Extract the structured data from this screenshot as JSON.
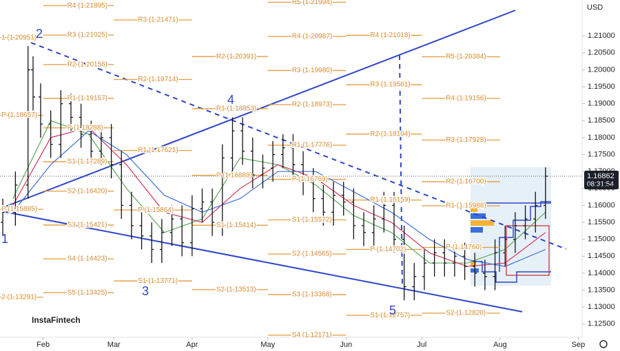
{
  "chart_data": {
    "type": "candlestick",
    "currency": "USD",
    "logo": "InstaFintech",
    "last_price": {
      "value": 1.16862,
      "label": "1.16862"
    },
    "last_time": "08:31:54",
    "color": "#111111",
    "xlim": [
      14.9,
      245.5
    ],
    "xticks": [
      {
        "value": 32,
        "label": "Feb"
      },
      {
        "value": 60,
        "label": "Mar"
      },
      {
        "value": 91,
        "label": "Apr"
      },
      {
        "value": 121,
        "label": "May"
      },
      {
        "value": 152,
        "label": "Jun"
      },
      {
        "value": 182,
        "label": "Jul"
      },
      {
        "value": 213,
        "label": "Aug"
      },
      {
        "value": 244,
        "label": "Sep"
      }
    ],
    "ylim": [
      1.1211,
      1.2206
    ],
    "yticks": [
      {
        "value": 1.125,
        "label": "1.12500"
      },
      {
        "value": 1.13,
        "label": "1.13000"
      },
      {
        "value": 1.135,
        "label": "1.13500"
      },
      {
        "value": 1.14,
        "label": "1.14000"
      },
      {
        "value": 1.145,
        "label": "1.14500"
      },
      {
        "value": 1.15,
        "label": "1.15000"
      },
      {
        "value": 1.155,
        "label": "1.15500"
      },
      {
        "value": 1.16,
        "label": "1.16000"
      },
      {
        "value": 1.165,
        "label": "1.16500"
      },
      {
        "value": 1.17,
        "label": "1.17000"
      },
      {
        "value": 1.175,
        "label": "1.17500"
      },
      {
        "value": 1.18,
        "label": "1.18000"
      },
      {
        "value": 1.185,
        "label": "1.18500"
      },
      {
        "value": 1.19,
        "label": "1.19000"
      },
      {
        "value": 1.195,
        "label": "1.19500"
      },
      {
        "value": 1.2,
        "label": "1.20000"
      },
      {
        "value": 1.205,
        "label": "1.20500"
      },
      {
        "value": 1.21,
        "label": "1.21000"
      }
    ],
    "x": [
      16,
      21,
      26,
      28,
      31,
      35,
      39,
      43,
      47,
      51,
      55,
      59,
      63,
      67,
      71,
      75,
      79,
      83,
      87,
      91,
      95,
      99,
      103,
      107,
      111,
      115,
      119,
      123,
      127,
      131,
      135,
      139,
      143,
      147,
      151,
      155,
      159,
      163,
      167,
      171,
      175,
      179,
      183,
      187,
      191,
      195,
      199,
      203,
      207,
      211,
      215,
      219,
      223,
      227,
      231
    ],
    "open": [
      1.155,
      1.158,
      1.166,
      1.2,
      1.192,
      1.184,
      1.178,
      1.19,
      1.186,
      1.181,
      1.176,
      1.18,
      1.172,
      1.16,
      1.154,
      1.151,
      1.147,
      1.152,
      1.156,
      1.149,
      1.159,
      1.161,
      1.155,
      1.174,
      1.182,
      1.176,
      1.169,
      1.171,
      1.175,
      1.177,
      1.172,
      1.167,
      1.162,
      1.158,
      1.163,
      1.161,
      1.154,
      1.152,
      1.156,
      1.16,
      1.15,
      1.136,
      1.139,
      1.143,
      1.146,
      1.143,
      1.145,
      1.142,
      1.14,
      1.139,
      1.146,
      1.15,
      1.154,
      1.156,
      1.16
    ],
    "high": [
      1.162,
      1.17,
      1.207,
      1.204,
      1.196,
      1.188,
      1.194,
      1.193,
      1.19,
      1.185,
      1.184,
      1.184,
      1.176,
      1.164,
      1.158,
      1.155,
      1.156,
      1.16,
      1.16,
      1.163,
      1.165,
      1.165,
      1.178,
      1.186,
      1.186,
      1.18,
      1.175,
      1.179,
      1.181,
      1.181,
      1.176,
      1.171,
      1.166,
      1.167,
      1.167,
      1.165,
      1.158,
      1.16,
      1.164,
      1.164,
      1.154,
      1.143,
      1.147,
      1.15,
      1.15,
      1.149,
      1.149,
      1.146,
      1.144,
      1.15,
      1.154,
      1.158,
      1.16,
      1.164,
      1.1712
    ],
    "low": [
      1.151,
      1.154,
      1.162,
      1.188,
      1.18,
      1.174,
      1.174,
      1.182,
      1.177,
      1.172,
      1.172,
      1.168,
      1.156,
      1.15,
      1.147,
      1.143,
      1.143,
      1.148,
      1.145,
      1.145,
      1.155,
      1.151,
      1.151,
      1.17,
      1.172,
      1.165,
      1.165,
      1.167,
      1.171,
      1.168,
      1.163,
      1.158,
      1.154,
      1.154,
      1.157,
      1.15,
      1.148,
      1.148,
      1.152,
      1.146,
      1.132,
      1.132,
      1.135,
      1.139,
      1.139,
      1.139,
      1.138,
      1.136,
      1.135,
      1.135,
      1.142,
      1.146,
      1.15,
      1.152,
      1.156
    ],
    "close": [
      1.158,
      1.166,
      1.2,
      1.192,
      1.184,
      1.178,
      1.19,
      1.186,
      1.181,
      1.176,
      1.18,
      1.172,
      1.16,
      1.154,
      1.151,
      1.147,
      1.152,
      1.156,
      1.149,
      1.159,
      1.161,
      1.155,
      1.174,
      1.182,
      1.176,
      1.169,
      1.171,
      1.175,
      1.177,
      1.172,
      1.167,
      1.162,
      1.158,
      1.163,
      1.161,
      1.154,
      1.152,
      1.156,
      1.16,
      1.15,
      1.136,
      1.139,
      1.143,
      1.146,
      1.143,
      1.145,
      1.142,
      1.14,
      1.139,
      1.146,
      1.15,
      1.154,
      1.156,
      1.16,
      1.1686
    ],
    "overlays": [
      {
        "color": "#5aa85a",
        "x": [
          20,
          35,
          50,
          65,
          80,
          95,
          110,
          125,
          140,
          155,
          170,
          185,
          200,
          215,
          231
        ],
        "values": [
          1.162,
          1.185,
          1.181,
          1.165,
          1.152,
          1.156,
          1.174,
          1.172,
          1.166,
          1.157,
          1.152,
          1.143,
          1.143,
          1.147,
          1.158
        ]
      },
      {
        "color": "#d0345a",
        "x": [
          20,
          35,
          50,
          65,
          80,
          95,
          110,
          125,
          140,
          155,
          170,
          185,
          200,
          215,
          231
        ],
        "values": [
          1.16,
          1.18,
          1.183,
          1.172,
          1.158,
          1.155,
          1.165,
          1.172,
          1.168,
          1.16,
          1.155,
          1.146,
          1.142,
          1.143,
          1.152
        ]
      },
      {
        "color": "#3f6fd8",
        "x": [
          20,
          35,
          50,
          65,
          80,
          95,
          110,
          125,
          140,
          155,
          170,
          185,
          200,
          215,
          231
        ],
        "values": [
          1.158,
          1.172,
          1.182,
          1.175,
          1.163,
          1.158,
          1.162,
          1.17,
          1.17,
          1.164,
          1.158,
          1.15,
          1.144,
          1.142,
          1.147
        ]
      }
    ],
    "pivot_color": "#e39a3b",
    "pivots": [
      {
        "start": 1,
        "end": 32,
        "levels": [
          {
            "label": "1 (1.20951)",
            "value": 1.20951
          },
          {
            "label": "P (1.18657)",
            "value": 1.18657
          },
          {
            "label": "P (1.15885)",
            "value": 1.15885
          },
          {
            "label": "2 (1.13291)",
            "value": 1.13291
          }
        ]
      },
      {
        "start": 32,
        "end": 60,
        "levels": [
          {
            "label": "R4 (1.21895)",
            "value": 1.21895
          },
          {
            "label": "R3 (1.21025)",
            "value": 1.21025
          },
          {
            "label": "R2 (1.20156)",
            "value": 1.20156
          },
          {
            "label": "R1 (1.19157)",
            "value": 1.19157
          },
          {
            "label": "P (1.18288)",
            "value": 1.18288
          },
          {
            "label": "S1 (1.17289)",
            "value": 1.17289
          },
          {
            "label": "S2 (1.16420)",
            "value": 1.1642
          },
          {
            "label": "S3 (1.15421)",
            "value": 1.15421
          },
          {
            "label": "S4 (1.14423)",
            "value": 1.14423
          },
          {
            "label": "S5 (1.13425)",
            "value": 1.13425
          }
        ]
      },
      {
        "start": 60,
        "end": 91,
        "levels": [
          {
            "label": "R3 (1.21471)",
            "value": 1.21471
          },
          {
            "label": "R2 (1.19714)",
            "value": 1.19714
          },
          {
            "label": "R1 (1.17621)",
            "value": 1.17621
          },
          {
            "label": "P (1.15864)",
            "value": 1.15864
          },
          {
            "label": "S1 (1.13771)",
            "value": 1.13771
          }
        ]
      },
      {
        "start": 91,
        "end": 121,
        "levels": [
          {
            "label": "R2 (1.20391)",
            "value": 1.20391
          },
          {
            "label": "R1 (1.18853)",
            "value": 1.18853
          },
          {
            "label": "P (1.16889)",
            "value": 1.16889
          },
          {
            "label": "S1 (1.15414)",
            "value": 1.15414
          },
          {
            "label": "S2 (1.13513)",
            "value": 1.13513
          }
        ]
      },
      {
        "start": 121,
        "end": 152,
        "levels": [
          {
            "label": "R5 (1.21994)",
            "value": 1.21994
          },
          {
            "label": "R4 (1.20987)",
            "value": 1.20987
          },
          {
            "label": "R3 (1.19980)",
            "value": 1.1998
          },
          {
            "label": "R2 (1.18973)",
            "value": 1.18973
          },
          {
            "label": "R1 (1.17776)",
            "value": 1.17776
          },
          {
            "label": "P (1.16769)",
            "value": 1.16769
          },
          {
            "label": "S1 (1.15572)",
            "value": 1.15572
          },
          {
            "label": "S2 (1.14565)",
            "value": 1.14565
          },
          {
            "label": "S3 (1.13368)",
            "value": 1.13368
          },
          {
            "label": "S4 (1.12171)",
            "value": 1.12171
          }
        ]
      },
      {
        "start": 152,
        "end": 182,
        "levels": [
          {
            "label": "R4 (1.21018)",
            "value": 1.21018
          },
          {
            "label": "R3 (1.19561)",
            "value": 1.19561
          },
          {
            "label": "R2 (1.18104)",
            "value": 1.18104
          },
          {
            "label": "R1 (1.16159)",
            "value": 1.16159
          },
          {
            "label": "P (1.14702)",
            "value": 1.14702
          },
          {
            "label": "S1 (1.12757)",
            "value": 1.12757
          }
        ]
      },
      {
        "start": 182,
        "end": 213,
        "levels": [
          {
            "label": "R5 (1.20384)",
            "value": 1.20384
          },
          {
            "label": "R4 (1.19156)",
            "value": 1.19156
          },
          {
            "label": "R3 (1.17928)",
            "value": 1.17928
          },
          {
            "label": "R2 (1.16700)",
            "value": 1.167
          },
          {
            "label": "R1 (1.15988)",
            "value": 1.15988
          },
          {
            "label": "P (1.14760)",
            "value": 1.1476
          },
          {
            "label": "S2 (1.12820)",
            "value": 1.1282
          }
        ]
      }
    ],
    "wave_labels": [
      "1",
      "2",
      "3",
      "4",
      "5"
    ]
  }
}
